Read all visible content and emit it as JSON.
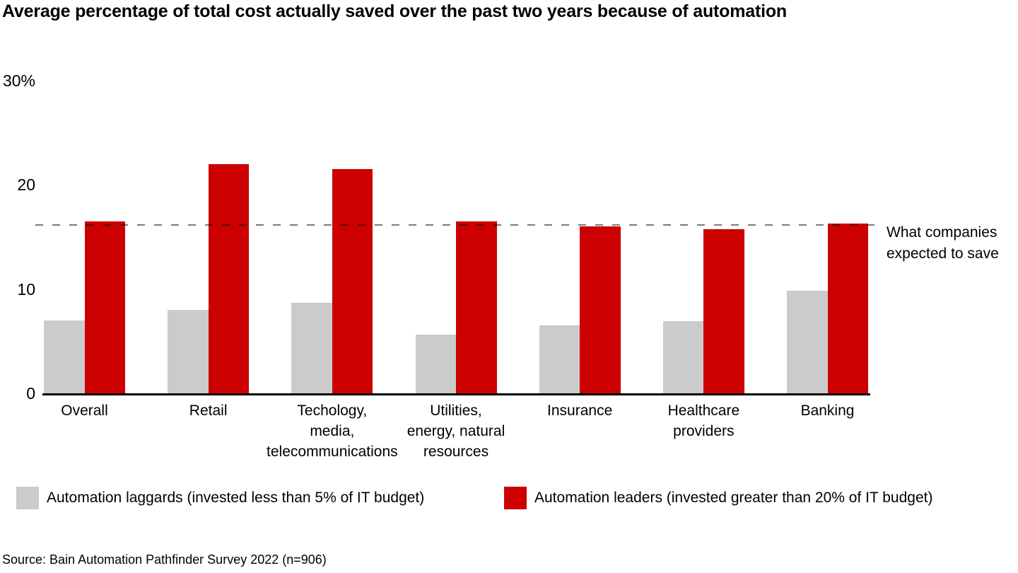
{
  "title": "Average percentage of total cost actually saved over the past two years because of automation",
  "source": "Source: Bain Automation Pathfinder Survey 2022 (n=906)",
  "chart_data": {
    "type": "bar",
    "title": "Average percentage of total cost actually saved over the past two years because of automation",
    "categories": [
      "Overall",
      "Retail",
      "Techology, media, telecommunications",
      "Utilities, energy, natural resources",
      "Insurance",
      "Healthcare providers",
      "Banking"
    ],
    "category_label_lines": [
      [
        "Overall"
      ],
      [
        "Retail"
      ],
      [
        "Techology,",
        "media,",
        "telecommunications"
      ],
      [
        "Utilities,",
        "energy, natural",
        "resources"
      ],
      [
        "Insurance"
      ],
      [
        "Healthcare",
        "providers"
      ],
      [
        "Banking"
      ]
    ],
    "series": [
      {
        "key": "laggards",
        "name": "Automation laggards (invested less than 5% of IT budget)",
        "color": "#cbcbcb",
        "values": [
          7,
          8,
          8.7,
          5.6,
          6.5,
          6.9,
          9.8
        ]
      },
      {
        "key": "leaders",
        "name": "Automation leaders (invested greater than 20% of IT budget)",
        "color": "#cc0000",
        "values": [
          16.5,
          22,
          21.5,
          16.5,
          16,
          15.7,
          16.3
        ]
      }
    ],
    "ylim": [
      0,
      30
    ],
    "yticks": [
      {
        "value": 30,
        "label": "30%"
      },
      {
        "value": 20,
        "label": "20"
      },
      {
        "value": 10,
        "label": "10"
      },
      {
        "value": 0,
        "label": "0"
      }
    ],
    "grid": false,
    "legend_position": "bottom",
    "axis_color": "#000000",
    "reference_line": {
      "value": 16,
      "label": "What companies expected to save",
      "color": "#808080",
      "style": "dashed"
    }
  }
}
